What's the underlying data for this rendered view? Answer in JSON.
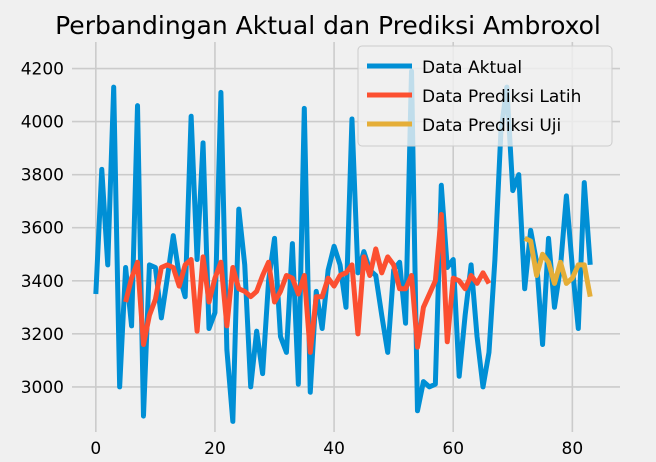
{
  "chart_data": {
    "type": "line",
    "title": "Perbandingan Aktual dan Prediksi Ambroxol",
    "xlabel": "",
    "ylabel": "",
    "xlim": [
      -4,
      88
    ],
    "ylim": [
      2830,
      4300
    ],
    "xticks": [
      0,
      20,
      40,
      60,
      80
    ],
    "yticks": [
      3000,
      3200,
      3400,
      3600,
      3800,
      4000,
      4200
    ],
    "grid": true,
    "legend_position": "top-right",
    "series": [
      {
        "name": "Data Aktual",
        "color": "#008fd5",
        "x": [
          0,
          1,
          2,
          3,
          4,
          5,
          6,
          7,
          8,
          9,
          10,
          11,
          12,
          13,
          14,
          15,
          16,
          17,
          18,
          19,
          20,
          21,
          22,
          23,
          24,
          25,
          26,
          27,
          28,
          29,
          30,
          31,
          32,
          33,
          34,
          35,
          36,
          37,
          38,
          39,
          40,
          41,
          42,
          43,
          44,
          45,
          46,
          47,
          48,
          49,
          50,
          51,
          52,
          53,
          54,
          55,
          56,
          57,
          58,
          59,
          60,
          61,
          62,
          63,
          64,
          65,
          66,
          67,
          68,
          69,
          70,
          71,
          72,
          73,
          74,
          75,
          76,
          77,
          78,
          79,
          80,
          81,
          82,
          83
        ],
        "values": [
          3350,
          3820,
          3460,
          4130,
          3000,
          3450,
          3230,
          4060,
          2890,
          3460,
          3450,
          3260,
          3410,
          3570,
          3420,
          3340,
          4020,
          3480,
          3920,
          3220,
          3280,
          4110,
          3140,
          2870,
          3670,
          3460,
          3000,
          3210,
          3050,
          3400,
          3560,
          3190,
          3130,
          3540,
          3010,
          4050,
          2980,
          3360,
          3220,
          3440,
          3530,
          3460,
          3300,
          4010,
          3430,
          3510,
          3440,
          3420,
          3270,
          3130,
          3440,
          3470,
          3240,
          4190,
          2910,
          3020,
          3000,
          3010,
          3760,
          3450,
          3480,
          3040,
          3270,
          3460,
          3190,
          3000,
          3130,
          3480,
          3960,
          4130,
          3740,
          3800,
          3370,
          3590,
          3470,
          3160,
          3560,
          3300,
          3450,
          3720,
          3450,
          3220,
          3770,
          3460
        ]
      },
      {
        "name": "Data Prediksi Latih",
        "color": "#fc4f30",
        "x": [
          5,
          6,
          7,
          8,
          9,
          10,
          11,
          12,
          13,
          14,
          15,
          16,
          17,
          18,
          19,
          20,
          21,
          22,
          23,
          24,
          25,
          26,
          27,
          28,
          29,
          30,
          31,
          32,
          33,
          34,
          35,
          36,
          37,
          38,
          39,
          40,
          41,
          42,
          43,
          44,
          45,
          46,
          47,
          48,
          49,
          50,
          51,
          52,
          53,
          54,
          55,
          56,
          57,
          58,
          59,
          60,
          61,
          62,
          63,
          64,
          65,
          66
        ],
        "values": [
          3320,
          3410,
          3470,
          3160,
          3270,
          3330,
          3450,
          3460,
          3450,
          3380,
          3460,
          3480,
          3210,
          3490,
          3320,
          3410,
          3470,
          3230,
          3450,
          3370,
          3360,
          3340,
          3360,
          3420,
          3470,
          3320,
          3360,
          3420,
          3410,
          3350,
          3420,
          3130,
          3340,
          3340,
          3410,
          3380,
          3420,
          3430,
          3460,
          3200,
          3490,
          3420,
          3520,
          3430,
          3490,
          3460,
          3370,
          3370,
          3420,
          3150,
          3300,
          3350,
          3400,
          3650,
          3170,
          3410,
          3400,
          3370,
          3420,
          3390,
          3430,
          3390
        ]
      },
      {
        "name": "Data Prediksi Uji",
        "color": "#e5ae38",
        "x": [
          72,
          73,
          74,
          75,
          76,
          77,
          78,
          79,
          80,
          81,
          82,
          83
        ],
        "values": [
          3560,
          3550,
          3420,
          3500,
          3470,
          3390,
          3470,
          3390,
          3410,
          3460,
          3460,
          3340
        ]
      }
    ]
  }
}
